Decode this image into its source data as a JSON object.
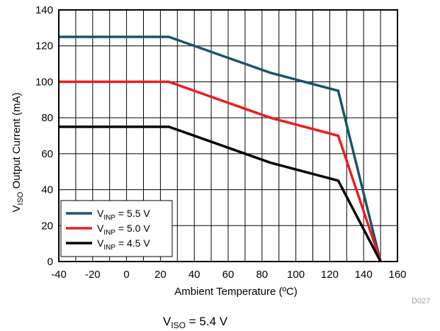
{
  "chart_data": {
    "type": "line",
    "xlabel": "Ambient Temperature (ºC)",
    "ylabel_main": "V",
    "ylabel_sub": "ISO",
    "ylabel_rest": " Output Current (mA)",
    "xlim": [
      -40,
      160
    ],
    "ylim": [
      0,
      140
    ],
    "xticks": [
      "-40",
      "-20",
      "0",
      "20",
      "40",
      "60",
      "80",
      "100",
      "120",
      "140",
      "160"
    ],
    "yticks": [
      "0",
      "20",
      "40",
      "60",
      "80",
      "100",
      "120",
      "140"
    ],
    "x_grid_step": 10,
    "y_grid_step": 20,
    "grid": true,
    "legend_position": "bottom-left",
    "series": [
      {
        "name": "V_INP = 5.5 V",
        "label_main": "V",
        "label_sub": "INP",
        "label_rest": " = 5.5 V",
        "color": "#1a5468",
        "x": [
          -40,
          25,
          85,
          125,
          150
        ],
        "y": [
          125,
          125,
          105,
          95,
          0
        ]
      },
      {
        "name": "V_INP = 5.0 V",
        "label_main": "V",
        "label_sub": "INP",
        "label_rest": " = 5.0 V",
        "color": "#ee1c1c",
        "x": [
          -40,
          25,
          85,
          125,
          150
        ],
        "y": [
          100,
          100,
          80,
          70,
          0
        ]
      },
      {
        "name": "V_INP = 4.5 V",
        "label_main": "V",
        "label_sub": "INP",
        "label_rest": " = 4.5 V",
        "color": "#000000",
        "x": [
          -40,
          25,
          85,
          125,
          150
        ],
        "y": [
          75,
          75,
          55,
          45,
          0
        ]
      }
    ],
    "figure_code": "D027",
    "condition_main": "V",
    "condition_sub": "ISO",
    "condition_rest": " = 5.4 V"
  }
}
